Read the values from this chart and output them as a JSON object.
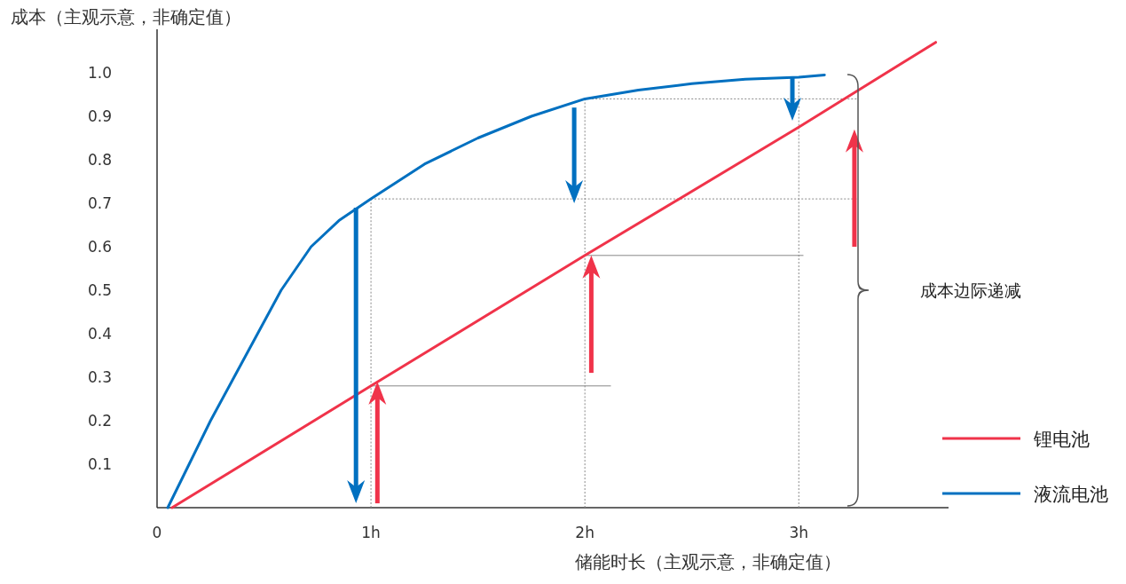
{
  "chart_data": {
    "type": "line",
    "ylabel": "成本（主观示意，非确定值）",
    "xlabel": "储能时长（主观示意，非确定值）",
    "xlim": [
      0,
      3.7
    ],
    "ylim": [
      0,
      1.1
    ],
    "xticks": [
      {
        "value": 0,
        "label": "0"
      },
      {
        "value": 1,
        "label": "1h"
      },
      {
        "value": 2,
        "label": "2h"
      },
      {
        "value": 3,
        "label": "3h"
      }
    ],
    "yticks": [
      0.1,
      0.2,
      0.3,
      0.4,
      0.5,
      0.6,
      0.7,
      0.8,
      0.9,
      {
        "value": 1,
        "label": "1.0"
      }
    ],
    "series": [
      {
        "name": "锂电池",
        "color": "#f0334a",
        "x": [
          0.07,
          1,
          2,
          3,
          3.64
        ],
        "values": [
          0,
          0.28,
          0.58,
          0.875,
          1.07
        ]
      },
      {
        "name": "液流电池",
        "color": "#0070c0",
        "x": [
          0.05,
          0.15,
          0.25,
          0.36,
          0.47,
          0.58,
          0.72,
          0.85,
          1,
          1.25,
          1.5,
          1.75,
          2,
          2.25,
          2.5,
          2.75,
          3,
          3.12
        ],
        "values": [
          0,
          0.1,
          0.2,
          0.3,
          0.4,
          0.5,
          0.6,
          0.66,
          0.71,
          0.79,
          0.85,
          0.9,
          0.94,
          0.96,
          0.975,
          0.985,
          0.99,
          0.995
        ]
      },
      {
        "color": "#888888",
        "line_style": "dotted",
        "x": [
          1,
          1,
          3.27
        ],
        "values": [
          0,
          0.71,
          0.71
        ]
      },
      {
        "color": "#888888",
        "line_style": "dotted",
        "x": [
          2,
          2,
          3.27
        ],
        "values": [
          0,
          0.94,
          0.94
        ]
      },
      {
        "color": "#888888",
        "line_style": "dotted",
        "x": [
          3,
          3
        ],
        "values": [
          0,
          0.98
        ]
      },
      {
        "color": "#888888",
        "line_style": "solid",
        "x": [
          1,
          2.12
        ],
        "values": [
          0.28,
          0.28
        ]
      },
      {
        "color": "#888888",
        "line_style": "solid",
        "x": [
          2,
          3.02
        ],
        "values": [
          0.58,
          0.58
        ]
      }
    ],
    "annotations": [
      "成本边际递减"
    ],
    "legend": "bottom right",
    "grid": false,
    "marker": "none"
  }
}
